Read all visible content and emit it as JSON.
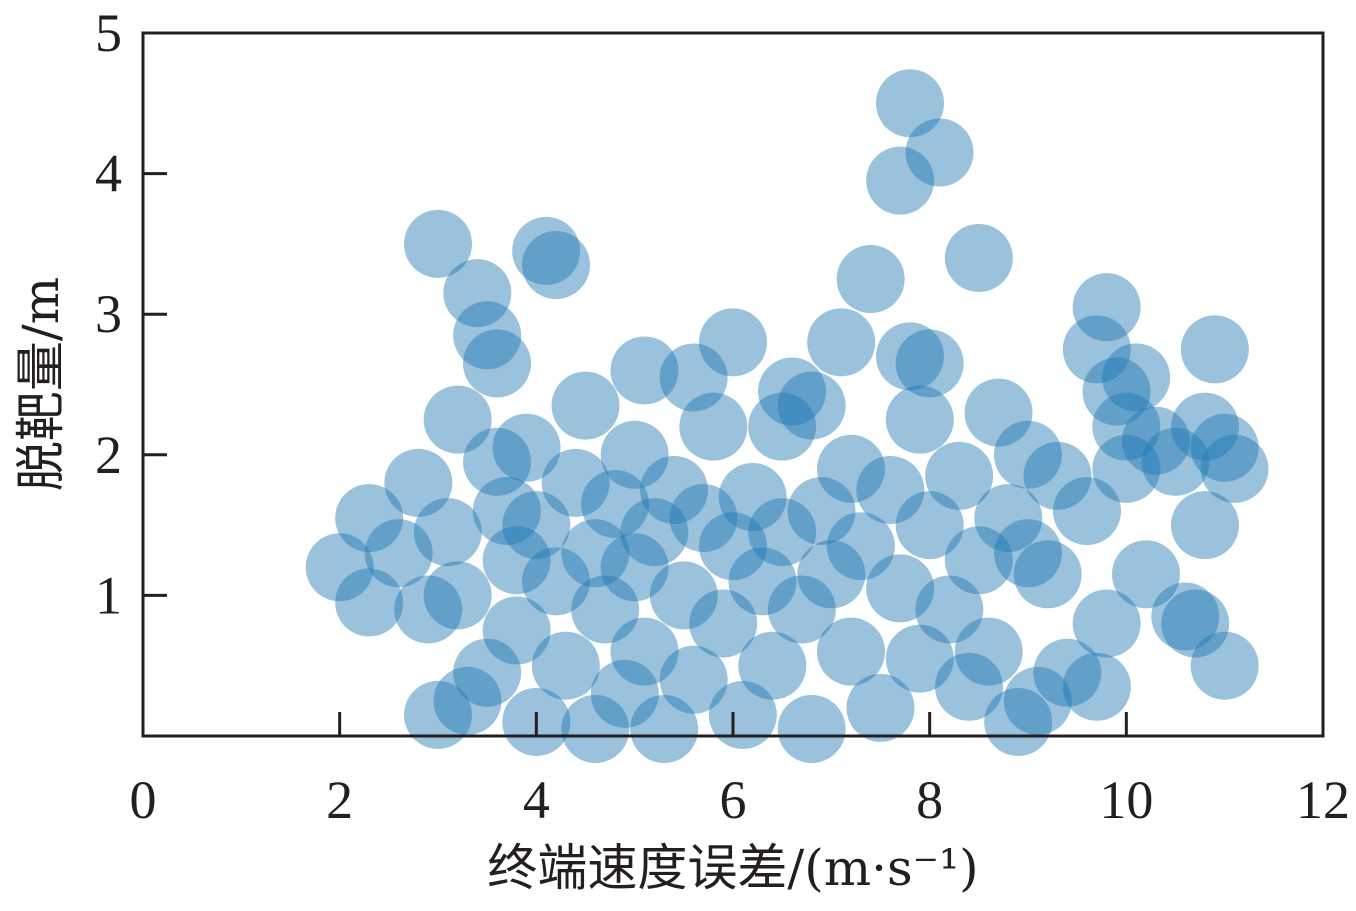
{
  "chart_data": {
    "type": "scatter",
    "xlabel": "终端速度误差/(m·s⁻¹)",
    "ylabel": "脱靶量/m",
    "xlim": [
      0,
      12
    ],
    "ylim": [
      0,
      5
    ],
    "xticks": [
      0,
      2,
      4,
      6,
      8,
      10,
      12
    ],
    "yticks": [
      1,
      2,
      3,
      4,
      5
    ],
    "grid": false,
    "marker_color": "#1f77b4",
    "marker_alpha": 0.45,
    "series": [
      {
        "points": [
          [
            2.0,
            1.2
          ],
          [
            2.3,
            0.95
          ],
          [
            2.3,
            1.55
          ],
          [
            2.6,
            1.3
          ],
          [
            2.8,
            1.8
          ],
          [
            2.9,
            0.9
          ],
          [
            3.0,
            0.15
          ],
          [
            3.0,
            3.5
          ],
          [
            3.1,
            1.45
          ],
          [
            3.2,
            1.0
          ],
          [
            3.2,
            2.25
          ],
          [
            3.3,
            0.25
          ],
          [
            3.4,
            3.15
          ],
          [
            3.5,
            2.85
          ],
          [
            3.6,
            2.65
          ],
          [
            3.5,
            0.45
          ],
          [
            3.6,
            1.95
          ],
          [
            3.7,
            1.6
          ],
          [
            3.8,
            1.25
          ],
          [
            3.8,
            0.75
          ],
          [
            3.9,
            2.05
          ],
          [
            4.0,
            0.1
          ],
          [
            4.0,
            1.5
          ],
          [
            4.1,
            3.45
          ],
          [
            4.2,
            3.35
          ],
          [
            4.2,
            1.1
          ],
          [
            4.3,
            0.5
          ],
          [
            4.4,
            1.8
          ],
          [
            4.5,
            2.35
          ],
          [
            4.6,
            0.05
          ],
          [
            4.6,
            1.3
          ],
          [
            4.7,
            0.9
          ],
          [
            4.8,
            1.65
          ],
          [
            4.9,
            0.3
          ],
          [
            5.0,
            2.0
          ],
          [
            5.0,
            1.2
          ],
          [
            5.1,
            2.6
          ],
          [
            5.1,
            0.6
          ],
          [
            5.2,
            1.45
          ],
          [
            5.3,
            0.05
          ],
          [
            5.4,
            1.75
          ],
          [
            5.5,
            1.0
          ],
          [
            5.6,
            0.4
          ],
          [
            5.6,
            2.55
          ],
          [
            5.7,
            1.55
          ],
          [
            5.8,
            2.2
          ],
          [
            5.9,
            0.8
          ],
          [
            6.0,
            1.35
          ],
          [
            6.0,
            2.8
          ],
          [
            6.1,
            0.15
          ],
          [
            6.2,
            1.7
          ],
          [
            6.3,
            1.1
          ],
          [
            6.4,
            0.5
          ],
          [
            6.5,
            2.2
          ],
          [
            6.5,
            1.45
          ],
          [
            6.6,
            2.45
          ],
          [
            6.7,
            0.9
          ],
          [
            6.8,
            0.05
          ],
          [
            6.8,
            2.35
          ],
          [
            6.9,
            1.6
          ],
          [
            7.0,
            1.15
          ],
          [
            7.1,
            2.8
          ],
          [
            7.2,
            0.6
          ],
          [
            7.2,
            1.9
          ],
          [
            7.3,
            1.35
          ],
          [
            7.4,
            3.25
          ],
          [
            7.5,
            0.2
          ],
          [
            7.6,
            1.75
          ],
          [
            7.7,
            3.95
          ],
          [
            7.7,
            1.05
          ],
          [
            7.8,
            4.5
          ],
          [
            7.8,
            2.7
          ],
          [
            7.9,
            2.25
          ],
          [
            7.9,
            0.55
          ],
          [
            8.0,
            2.65
          ],
          [
            8.0,
            1.5
          ],
          [
            8.1,
            4.15
          ],
          [
            8.2,
            0.9
          ],
          [
            8.3,
            1.85
          ],
          [
            8.4,
            0.35
          ],
          [
            8.5,
            3.4
          ],
          [
            8.5,
            1.25
          ],
          [
            8.6,
            0.6
          ],
          [
            8.7,
            2.3
          ],
          [
            8.8,
            1.55
          ],
          [
            8.9,
            0.1
          ],
          [
            9.0,
            2.0
          ],
          [
            9.0,
            1.3
          ],
          [
            9.1,
            0.25
          ],
          [
            9.2,
            1.15
          ],
          [
            9.3,
            1.85
          ],
          [
            9.4,
            0.45
          ],
          [
            9.6,
            1.6
          ],
          [
            9.7,
            0.35
          ],
          [
            9.7,
            2.75
          ],
          [
            9.8,
            3.05
          ],
          [
            9.8,
            0.8
          ],
          [
            9.9,
            2.45
          ],
          [
            10.0,
            1.9
          ],
          [
            10.0,
            2.2
          ],
          [
            10.1,
            2.55
          ],
          [
            10.2,
            1.15
          ],
          [
            10.3,
            2.1
          ],
          [
            10.5,
            1.95
          ],
          [
            10.6,
            0.85
          ],
          [
            10.7,
            0.8
          ],
          [
            10.8,
            1.5
          ],
          [
            10.8,
            2.2
          ],
          [
            10.9,
            2.75
          ],
          [
            11.0,
            0.5
          ],
          [
            11.0,
            2.05
          ],
          [
            11.1,
            1.9
          ]
        ]
      }
    ]
  }
}
